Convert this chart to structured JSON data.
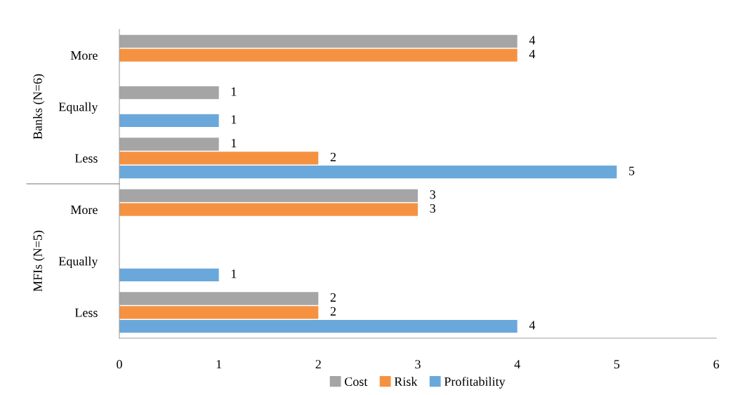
{
  "chart_data": {
    "type": "bar",
    "orientation": "horizontal",
    "categories": [
      "More",
      "Equally",
      "Less",
      "More",
      "Equally",
      "Less"
    ],
    "annotations": [
      "Banks (N=6)",
      "MFIs (N=5)"
    ],
    "series": [
      {
        "name": "Cost",
        "color": "#a5a5a5",
        "values": [
          4,
          1,
          1,
          3,
          null,
          2
        ]
      },
      {
        "name": "Risk",
        "color": "#f59241",
        "values": [
          4,
          null,
          2,
          3,
          null,
          2
        ]
      },
      {
        "name": "Profitability",
        "color": "#6aa8db",
        "values": [
          null,
          1,
          5,
          null,
          1,
          4
        ]
      }
    ],
    "xlim": [
      0,
      6
    ],
    "xticks": [
      0,
      1,
      2,
      3,
      4,
      5,
      6
    ],
    "data_labels": true,
    "grid": false,
    "legend": "bottom"
  }
}
